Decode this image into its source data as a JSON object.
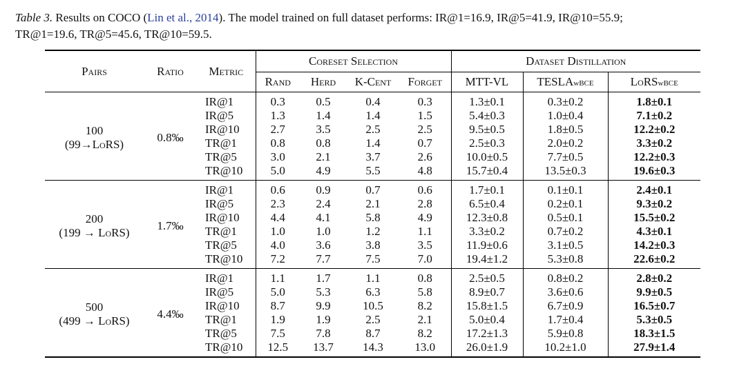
{
  "caption": {
    "label": "Table 3.",
    "text_before_cite": " Results on COCO (",
    "cite": "Lin et al., 2014",
    "text_after_cite": ").  The model trained on full dataset performs: IR@1=16.9, IR@5=41.9, IR@10=55.9;",
    "line2": "TR@1=19.6, TR@5=45.6, TR@10=59.5."
  },
  "header": {
    "pairs": "Pairs",
    "ratio": "Ratio",
    "metric": "Metric",
    "coreset_group": "Coreset Selection",
    "distill_group": "Dataset Distillation",
    "rand": "Rand",
    "herd": "Herd",
    "kcent": "K-Cent",
    "forget": "Forget",
    "mttvl": "MTT-VL",
    "tesla": "TESLA",
    "tesla_sub": "wBCE",
    "lors": "LoRS",
    "lors_sub": "wBCE"
  },
  "groups": [
    {
      "pairs": "100",
      "pairs_sub": "(99→LoRS)",
      "ratio": "0.8‰",
      "rows": [
        {
          "metric": "IR@1",
          "rand": "0.3",
          "herd": "0.5",
          "kcent": "0.4",
          "forget": "0.3",
          "mttvl": "1.3±0.1",
          "tesla": "0.3±0.2",
          "lors": "1.8±0.1"
        },
        {
          "metric": "IR@5",
          "rand": "1.3",
          "herd": "1.4",
          "kcent": "1.4",
          "forget": "1.5",
          "mttvl": "5.4±0.3",
          "tesla": "1.0±0.4",
          "lors": "7.1±0.2"
        },
        {
          "metric": "IR@10",
          "rand": "2.7",
          "herd": "3.5",
          "kcent": "2.5",
          "forget": "2.5",
          "mttvl": "9.5±0.5",
          "tesla": "1.8±0.5",
          "lors": "12.2±0.2"
        },
        {
          "metric": "TR@1",
          "rand": "0.8",
          "herd": "0.8",
          "kcent": "1.4",
          "forget": "0.7",
          "mttvl": "2.5±0.3",
          "tesla": "2.0±0.2",
          "lors": "3.3±0.2"
        },
        {
          "metric": "TR@5",
          "rand": "3.0",
          "herd": "2.1",
          "kcent": "3.7",
          "forget": "2.6",
          "mttvl": "10.0±0.5",
          "tesla": "7.7±0.5",
          "lors": "12.2±0.3"
        },
        {
          "metric": "TR@10",
          "rand": "5.0",
          "herd": "4.9",
          "kcent": "5.5",
          "forget": "4.8",
          "mttvl": "15.7±0.4",
          "tesla": "13.5±0.3",
          "lors": "19.6±0.3"
        }
      ]
    },
    {
      "pairs": "200",
      "pairs_sub": "(199 → LoRS)",
      "ratio": "1.7‰",
      "rows": [
        {
          "metric": "IR@1",
          "rand": "0.6",
          "herd": "0.9",
          "kcent": "0.7",
          "forget": "0.6",
          "mttvl": "1.7±0.1",
          "tesla": "0.1±0.1",
          "lors": "2.4±0.1"
        },
        {
          "metric": "IR@5",
          "rand": "2.3",
          "herd": "2.4",
          "kcent": "2.1",
          "forget": "2.8",
          "mttvl": "6.5±0.4",
          "tesla": "0.2±0.1",
          "lors": "9.3±0.2"
        },
        {
          "metric": "IR@10",
          "rand": "4.4",
          "herd": "4.1",
          "kcent": "5.8",
          "forget": "4.9",
          "mttvl": "12.3±0.8",
          "tesla": "0.5±0.1",
          "lors": "15.5±0.2"
        },
        {
          "metric": "TR@1",
          "rand": "1.0",
          "herd": "1.0",
          "kcent": "1.2",
          "forget": "1.1",
          "mttvl": "3.3±0.2",
          "tesla": "0.7±0.2",
          "lors": "4.3±0.1"
        },
        {
          "metric": "TR@5",
          "rand": "4.0",
          "herd": "3.6",
          "kcent": "3.8",
          "forget": "3.5",
          "mttvl": "11.9±0.6",
          "tesla": "3.1±0.5",
          "lors": "14.2±0.3"
        },
        {
          "metric": "TR@10",
          "rand": "7.2",
          "herd": "7.7",
          "kcent": "7.5",
          "forget": "7.0",
          "mttvl": "19.4±1.2",
          "tesla": "5.3±0.8",
          "lors": "22.6±0.2"
        }
      ]
    },
    {
      "pairs": "500",
      "pairs_sub": "(499 → LoRS)",
      "ratio": "4.4‰",
      "rows": [
        {
          "metric": "IR@1",
          "rand": "1.1",
          "herd": "1.7",
          "kcent": "1.1",
          "forget": "0.8",
          "mttvl": "2.5±0.5",
          "tesla": "0.8±0.2",
          "lors": "2.8±0.2"
        },
        {
          "metric": "IR@5",
          "rand": "5.0",
          "herd": "5.3",
          "kcent": "6.3",
          "forget": "5.8",
          "mttvl": "8.9±0.7",
          "tesla": "3.6±0.6",
          "lors": "9.9±0.5"
        },
        {
          "metric": "IR@10",
          "rand": "8.7",
          "herd": "9.9",
          "kcent": "10.5",
          "forget": "8.2",
          "mttvl": "15.8±1.5",
          "tesla": "6.7±0.9",
          "lors": "16.5±0.7"
        },
        {
          "metric": "TR@1",
          "rand": "1.9",
          "herd": "1.9",
          "kcent": "2.5",
          "forget": "2.1",
          "mttvl": "5.0±0.4",
          "tesla": "1.7±0.4",
          "lors": "5.3±0.5"
        },
        {
          "metric": "TR@5",
          "rand": "7.5",
          "herd": "7.8",
          "kcent": "8.7",
          "forget": "8.2",
          "mttvl": "17.2±1.3",
          "tesla": "5.9±0.8",
          "lors": "18.3±1.5"
        },
        {
          "metric": "TR@10",
          "rand": "12.5",
          "herd": "13.7",
          "kcent": "14.3",
          "forget": "13.0",
          "mttvl": "26.0±1.9",
          "tesla": "10.2±1.0",
          "lors": "27.9±1.4"
        }
      ]
    }
  ]
}
